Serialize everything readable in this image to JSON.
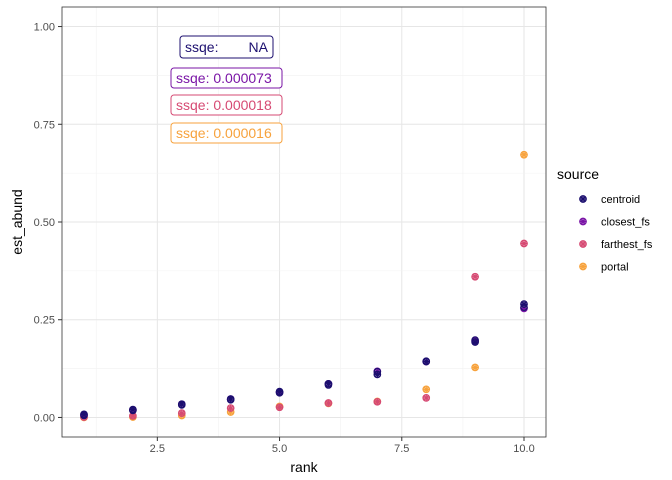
{
  "chart_data": {
    "type": "scatter",
    "xlabel": "rank",
    "ylabel": "est_abund",
    "xlim": [
      0.55,
      10.45
    ],
    "ylim": [
      -0.05,
      1.05
    ],
    "x_ticks": [
      2.5,
      5.0,
      7.5,
      10.0
    ],
    "x_tick_labels": [
      "2.5",
      "5.0",
      "7.5",
      "10.0"
    ],
    "y_ticks": [
      0.0,
      0.25,
      0.5,
      0.75,
      1.0
    ],
    "y_tick_labels": [
      "0.00",
      "0.25",
      "0.50",
      "0.75",
      "1.00"
    ],
    "grid": true,
    "legend": {
      "title": "source",
      "position": "right",
      "entries": [
        "centroid",
        "closest_fs",
        "farthest_fs",
        "portal"
      ]
    },
    "colors": {
      "centroid": "#1c0f6f",
      "closest_fs": "#7a15a6",
      "farthest_fs": "#d64a73",
      "portal": "#f7a23c"
    },
    "series": [
      {
        "name": "centroid",
        "x": [
          1,
          2,
          3,
          4,
          5,
          6,
          7,
          8,
          9,
          10
        ],
        "y": [
          0.008,
          0.02,
          0.034,
          0.047,
          0.066,
          0.086,
          0.11,
          0.143,
          0.193,
          0.29
        ],
        "y2": [
          0.005,
          0.018,
          0.032,
          0.045,
          0.063,
          0.083,
          0.117,
          0.144,
          0.198,
          0.282
        ]
      },
      {
        "name": "closest_fs",
        "x": [
          1,
          2,
          3,
          4,
          5,
          6,
          7,
          8,
          9,
          10
        ],
        "y": [
          0.006,
          0.019,
          0.034,
          0.047,
          0.064,
          0.086,
          0.118,
          0.143,
          0.196,
          0.279
        ]
      },
      {
        "name": "farthest_fs",
        "x": [
          1,
          2,
          3,
          4,
          5,
          6,
          7,
          8,
          9,
          10
        ],
        "y": [
          0.001,
          0.004,
          0.011,
          0.024,
          0.026,
          0.037,
          0.04,
          0.05,
          0.36,
          0.445
        ]
      },
      {
        "name": "portal",
        "x": [
          1,
          2,
          3,
          4,
          5,
          6,
          7,
          8,
          9,
          10
        ],
        "y": [
          0.0,
          0.001,
          0.005,
          0.014,
          0.028,
          0.036,
          0.041,
          0.072,
          0.128,
          0.672
        ]
      }
    ],
    "annotations": [
      {
        "label": "ssqe:",
        "value": "NA",
        "series": "centroid"
      },
      {
        "label": "ssqe: 0.000073",
        "value": "",
        "series": "closest_fs"
      },
      {
        "label": "ssqe: 0.000018",
        "value": "",
        "series": "farthest_fs"
      },
      {
        "label": "ssqe: 0.000016",
        "value": "",
        "series": "portal"
      }
    ]
  }
}
